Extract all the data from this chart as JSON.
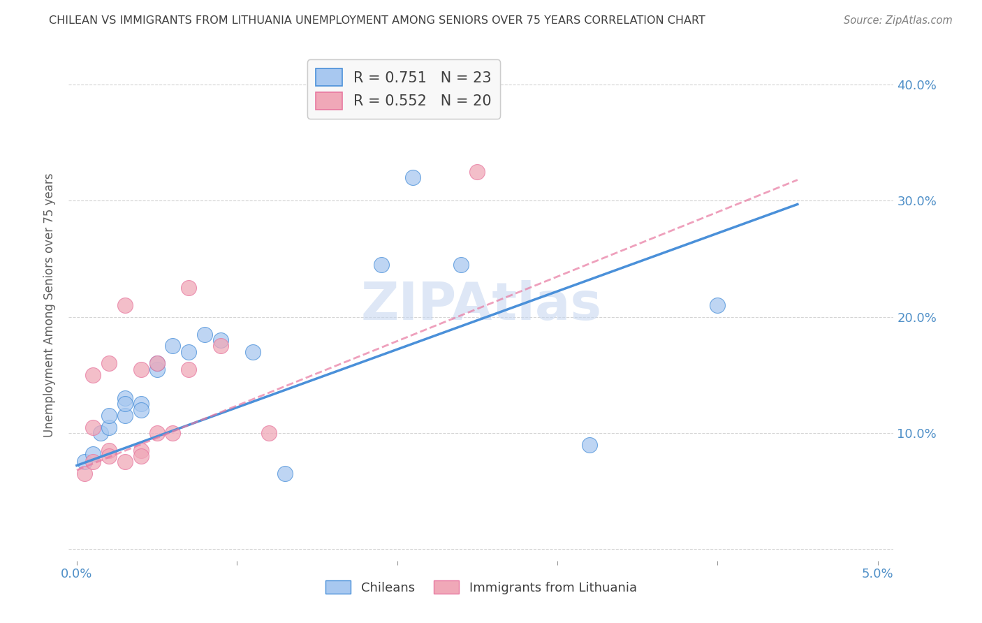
{
  "title": "CHILEAN VS IMMIGRANTS FROM LITHUANIA UNEMPLOYMENT AMONG SENIORS OVER 75 YEARS CORRELATION CHART",
  "source": "Source: ZipAtlas.com",
  "ylabel": "Unemployment Among Seniors over 75 years",
  "y_ticks": [
    0.0,
    0.1,
    0.2,
    0.3,
    0.4
  ],
  "y_tick_labels": [
    "",
    "10.0%",
    "20.0%",
    "30.0%",
    "40.0%"
  ],
  "x_ticks": [
    0.0,
    0.01,
    0.02,
    0.03,
    0.04,
    0.05
  ],
  "x_tick_labels": [
    "0.0%",
    "",
    "",
    "",
    "",
    "5.0%"
  ],
  "xlim": [
    -0.0005,
    0.051
  ],
  "ylim": [
    -0.01,
    0.43
  ],
  "bg_color": "#ffffff",
  "grid_color": "#d0d0d0",
  "chileans_color": "#a8c8f0",
  "immigrants_color": "#f0a8b8",
  "line_chileans_color": "#4a90d9",
  "line_immigrants_color": "#e878a0",
  "legend_r_chileans": "0.751",
  "legend_n_chileans": "23",
  "legend_r_immigrants": "0.552",
  "legend_n_immigrants": "20",
  "chileans_scatter": [
    [
      0.0005,
      0.075
    ],
    [
      0.001,
      0.082
    ],
    [
      0.0015,
      0.1
    ],
    [
      0.002,
      0.105
    ],
    [
      0.002,
      0.115
    ],
    [
      0.003,
      0.115
    ],
    [
      0.003,
      0.13
    ],
    [
      0.003,
      0.125
    ],
    [
      0.004,
      0.125
    ],
    [
      0.004,
      0.12
    ],
    [
      0.005,
      0.155
    ],
    [
      0.005,
      0.16
    ],
    [
      0.006,
      0.175
    ],
    [
      0.007,
      0.17
    ],
    [
      0.008,
      0.185
    ],
    [
      0.009,
      0.18
    ],
    [
      0.011,
      0.17
    ],
    [
      0.013,
      0.065
    ],
    [
      0.019,
      0.245
    ],
    [
      0.021,
      0.32
    ],
    [
      0.024,
      0.245
    ],
    [
      0.032,
      0.09
    ],
    [
      0.04,
      0.21
    ]
  ],
  "immigrants_scatter": [
    [
      0.0005,
      0.065
    ],
    [
      0.001,
      0.075
    ],
    [
      0.001,
      0.105
    ],
    [
      0.001,
      0.15
    ],
    [
      0.002,
      0.085
    ],
    [
      0.002,
      0.16
    ],
    [
      0.002,
      0.08
    ],
    [
      0.003,
      0.075
    ],
    [
      0.003,
      0.21
    ],
    [
      0.004,
      0.085
    ],
    [
      0.004,
      0.155
    ],
    [
      0.004,
      0.08
    ],
    [
      0.005,
      0.16
    ],
    [
      0.005,
      0.1
    ],
    [
      0.006,
      0.1
    ],
    [
      0.007,
      0.225
    ],
    [
      0.007,
      0.155
    ],
    [
      0.009,
      0.175
    ],
    [
      0.012,
      0.1
    ],
    [
      0.025,
      0.325
    ]
  ],
  "chileans_line_x": [
    0.0,
    0.045
  ],
  "chileans_line_y": [
    0.072,
    0.297
  ],
  "immigrants_line_x": [
    0.0,
    0.045
  ],
  "immigrants_line_y": [
    0.068,
    0.318
  ],
  "watermark": "ZIPAtlas",
  "watermark_color": "#c8d8f0",
  "title_color": "#404040",
  "tick_color": "#5090c8",
  "legend_box_color": "#e8e8e8",
  "legend_border_color": "#cccccc"
}
